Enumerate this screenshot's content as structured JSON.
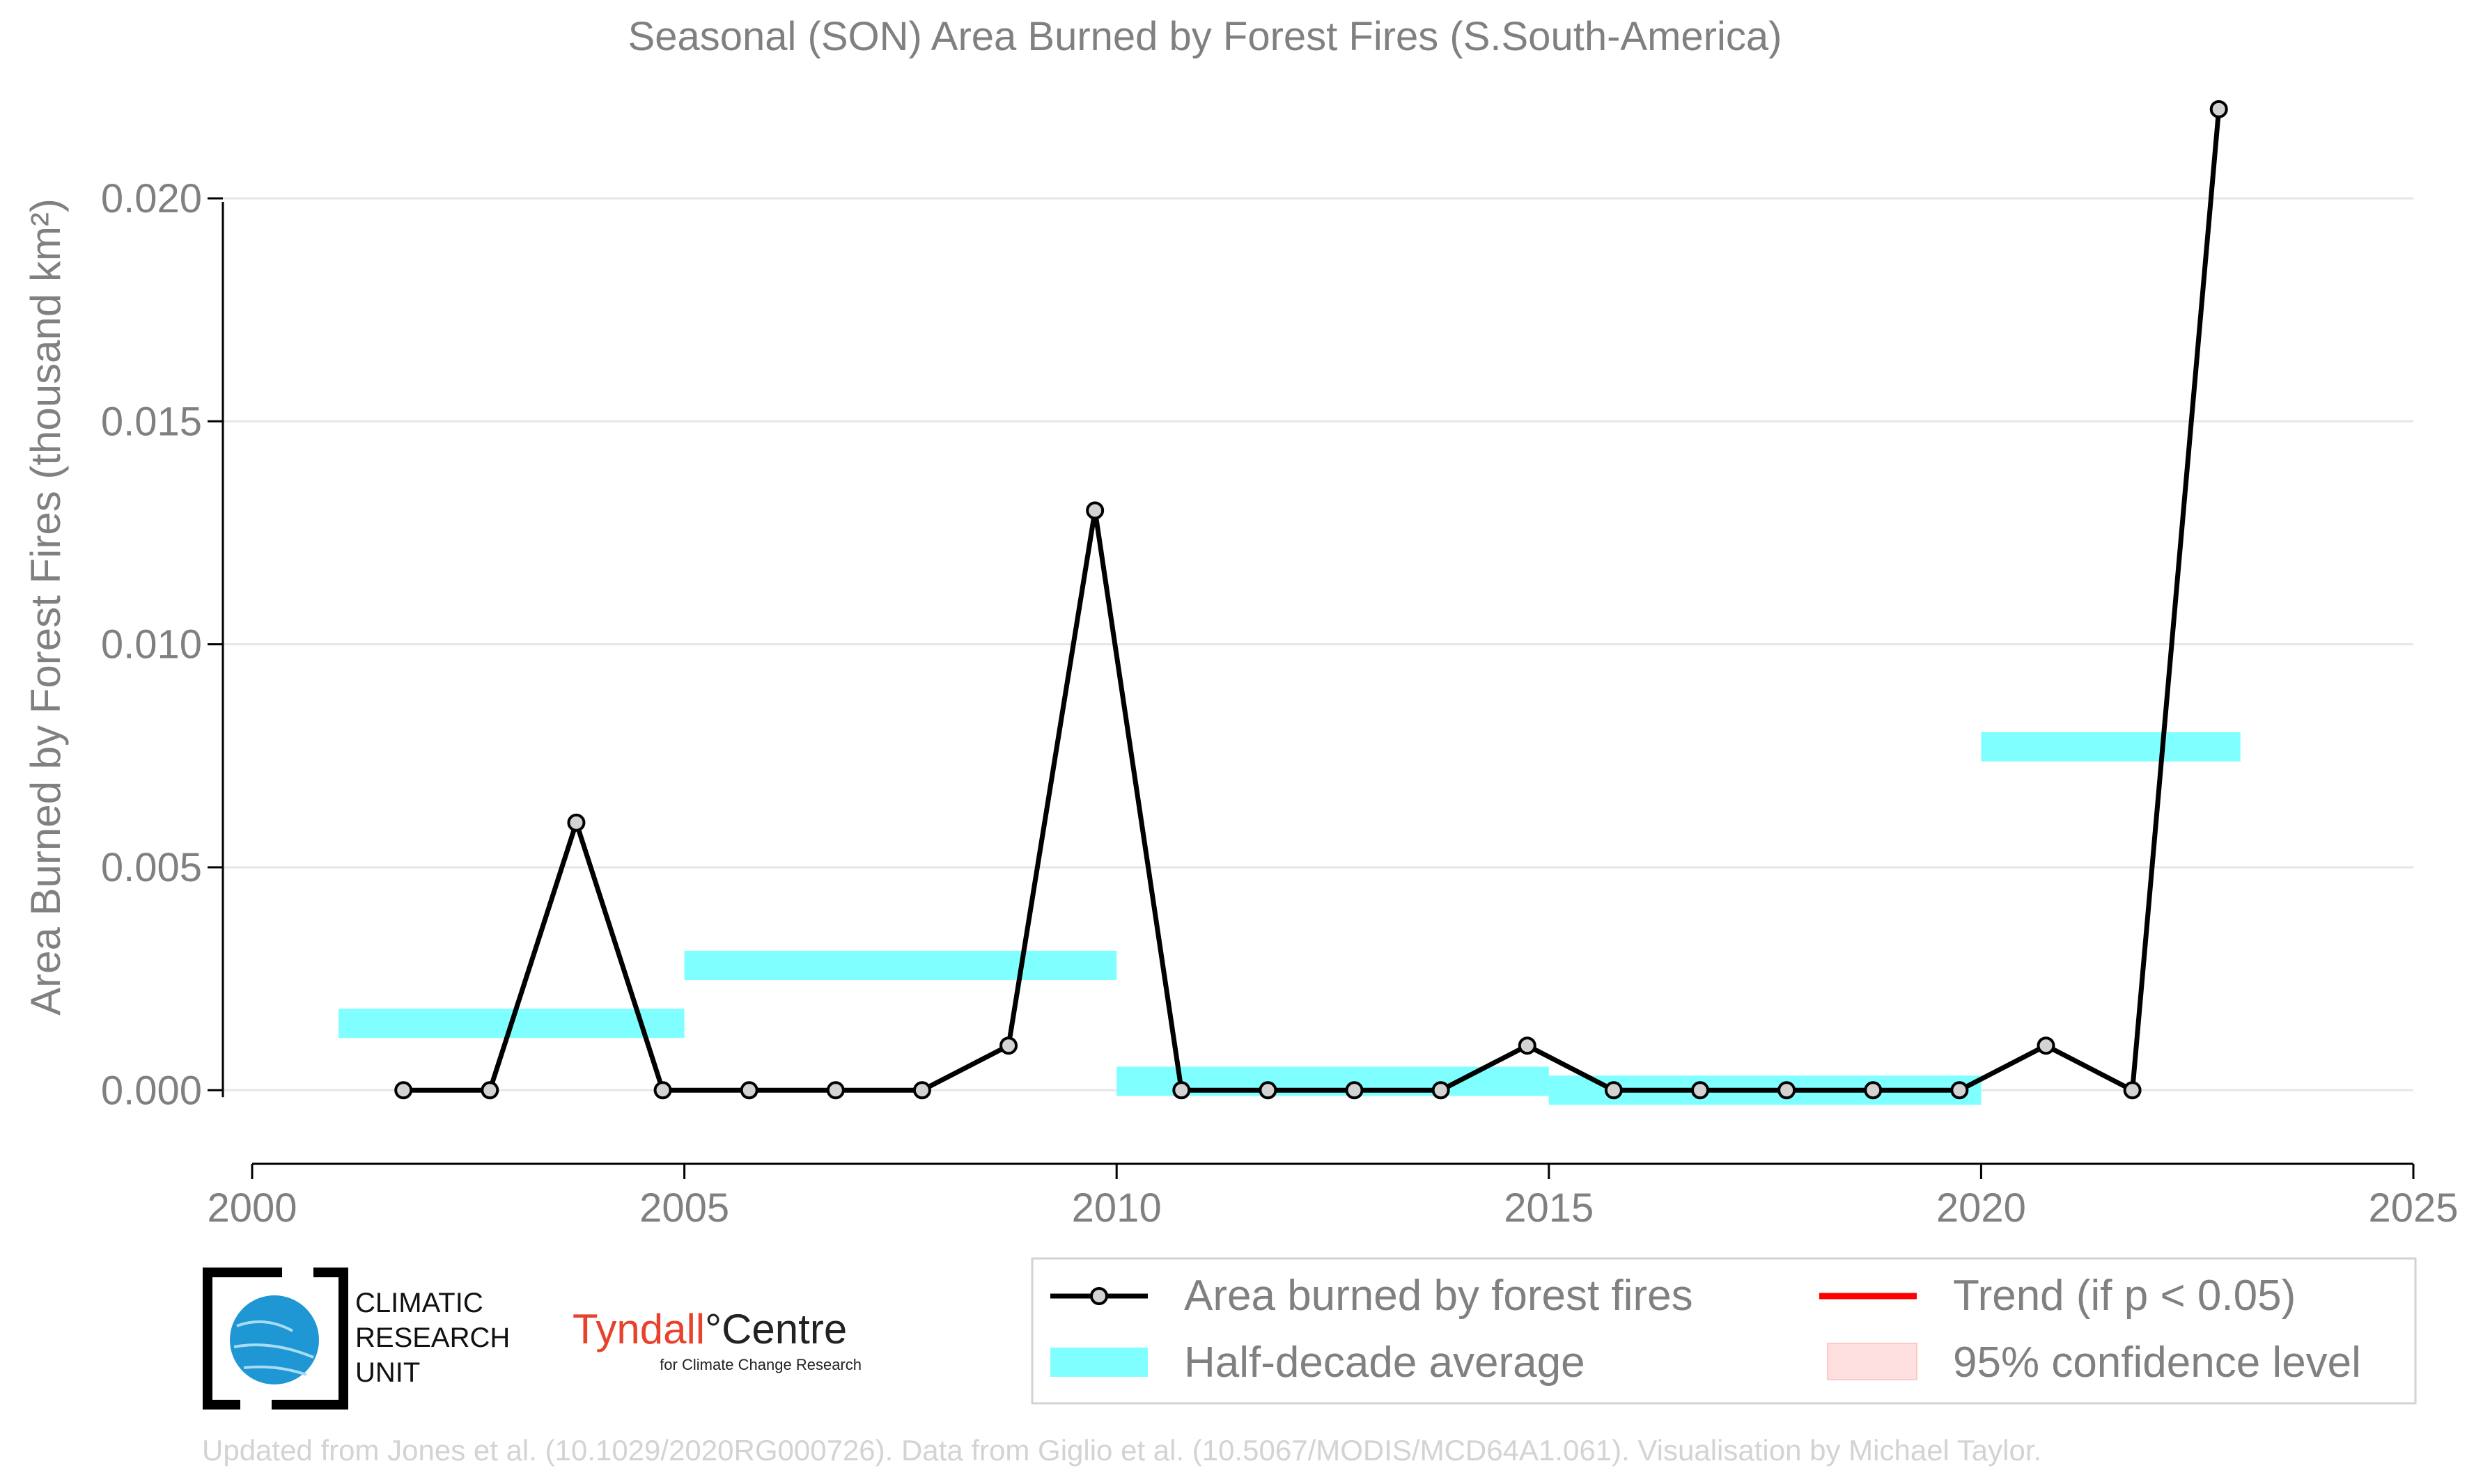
{
  "chart_data": {
    "type": "line",
    "title": "Seasonal (SON) Area Burned by Forest Fires (S.South-America)",
    "ylabel": "Area Burned by Forest Fires (thousand km²)",
    "xlabel": "",
    "xlim": [
      2000,
      2025
    ],
    "ylim": [
      -0.00165,
      0.0227
    ],
    "x_ticks": [
      2000,
      2005,
      2010,
      2015,
      2020,
      2025
    ],
    "x_tick_labels": [
      "2000",
      "2005",
      "2010",
      "2015",
      "2020",
      "2025"
    ],
    "y_ticks": [
      0.0,
      0.005,
      0.01,
      0.015,
      0.02
    ],
    "y_tick_labels": [
      "0.000",
      "0.005",
      "0.010",
      "0.015",
      "0.020"
    ],
    "grid": "horizontal",
    "legend_position": "bottom-right",
    "series": [
      {
        "name": "Area burned by forest fires",
        "color": "#000000",
        "x": [
          2001.75,
          2002.75,
          2003.75,
          2004.75,
          2005.75,
          2006.75,
          2007.75,
          2008.75,
          2009.75,
          2010.75,
          2011.75,
          2012.75,
          2013.75,
          2014.75,
          2015.75,
          2016.75,
          2017.75,
          2018.75,
          2019.75,
          2020.75,
          2021.75,
          2022.75
        ],
        "y": [
          0.0,
          0.0,
          0.006,
          0.0,
          0.0,
          0.0,
          0.0,
          0.001,
          0.013,
          0.0,
          0.0,
          0.0,
          0.0,
          0.001,
          0.0,
          0.0,
          0.0,
          0.0,
          0.0,
          0.001,
          0.0,
          0.022
        ]
      }
    ],
    "half_decade_averages": {
      "name": "Half-decade average",
      "color": "#7fffff",
      "segments": [
        {
          "x0": 2001,
          "x1": 2005,
          "value": 0.0015
        },
        {
          "x0": 2005,
          "x1": 2010,
          "value": 0.0028
        },
        {
          "x0": 2010,
          "x1": 2015,
          "value": 0.0002
        },
        {
          "x0": 2015,
          "x1": 2020,
          "value": 0.0
        },
        {
          "x0": 2020,
          "x1": 2023,
          "value": 0.0077
        }
      ]
    },
    "legend": [
      {
        "label": "Area burned by forest fires",
        "kind": "line-marker",
        "color": "#000000"
      },
      {
        "label": "Trend (if p < 0.05)",
        "kind": "line",
        "color": "#ff0000"
      },
      {
        "label": "Half-decade average",
        "kind": "band",
        "color": "#7fffff"
      },
      {
        "label": "95% confidence level",
        "kind": "band",
        "color": "#ffe0e0"
      }
    ]
  },
  "logos": {
    "cru_lines": [
      "CLIMATIC",
      "RESEARCH",
      "UNIT"
    ],
    "tyndall_main": "Tyndall",
    "tyndall_centre": "°Centre",
    "tyndall_sub": "for Climate Change Research"
  },
  "credit": "Updated from Jones et al. (10.1029/2020RG000726). Data from Giglio et al. (10.5067/MODIS/MCD64A1.061). Visualisation by Michael Taylor."
}
